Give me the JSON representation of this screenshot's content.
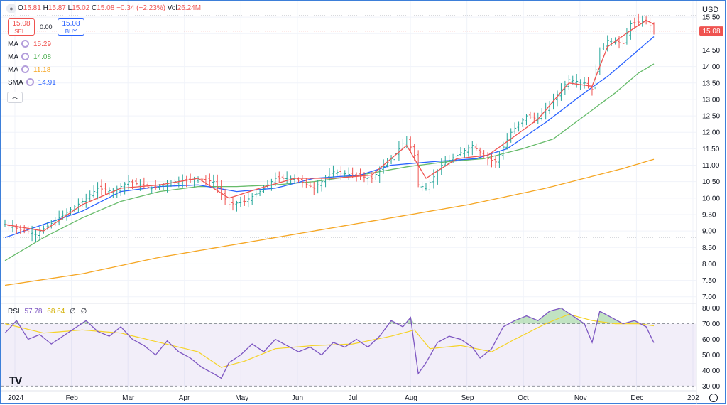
{
  "header": {
    "o_label": "O",
    "o": "15.81",
    "h_label": "H",
    "h": "15.87",
    "l_label": "L",
    "l": "15.02",
    "c_label": "C",
    "c": "15.08",
    "change": "−0.34 (−2.23%)",
    "vol_label": "Vol",
    "vol": "26.24M"
  },
  "trade": {
    "sell_price": "15.08",
    "sell_label": "SELL",
    "spread": "0.00",
    "buy_price": "15.08",
    "buy_label": "BUY"
  },
  "indicators": [
    {
      "label": "MA",
      "value": "15.29",
      "color": "#ef5350"
    },
    {
      "label": "MA",
      "value": "14.08",
      "color": "#4caf50"
    },
    {
      "label": "MA",
      "value": "11.18",
      "color": "#f5a623"
    },
    {
      "label": "SMA",
      "value": "14.91",
      "color": "#2962ff"
    }
  ],
  "collapse_icon": "chevron-up-icon",
  "currency": "USD",
  "logo_text": "TV",
  "rsi_legend": {
    "label": "RSI",
    "value": "57.78",
    "ma_value": "68.64",
    "extra1": "∅",
    "extra2": "∅"
  },
  "chart_data": {
    "type": "ohlc",
    "price_axis": {
      "ticks": [
        "7.00",
        "7.50",
        "8.00",
        "8.50",
        "9.00",
        "9.50",
        "10.00",
        "10.50",
        "11.00",
        "11.50",
        "12.00",
        "12.50",
        "13.00",
        "13.50",
        "14.00",
        "14.50",
        "15.00",
        "15.50"
      ],
      "ylim": [
        6.8,
        16.0
      ],
      "last_price_label": "15.08"
    },
    "rsi_axis": {
      "ticks": [
        "30.00",
        "40.00",
        "50.00",
        "60.00",
        "70.00",
        "80.00"
      ],
      "ylim": [
        27,
        83
      ],
      "band": [
        30,
        70
      ]
    },
    "months": [
      "2024",
      "Feb",
      "Mar",
      "Apr",
      "May",
      "Jun",
      "Jul",
      "Aug",
      "Sep",
      "Oct",
      "Nov",
      "Dec",
      "202"
    ],
    "price_anchors": [
      [
        0,
        9.2
      ],
      [
        8,
        8.9
      ],
      [
        14,
        9.4
      ],
      [
        20,
        9.9
      ],
      [
        24,
        10.3
      ],
      [
        28,
        10.2
      ],
      [
        32,
        10.5
      ],
      [
        38,
        10.3
      ],
      [
        44,
        10.5
      ],
      [
        50,
        10.6
      ],
      [
        54,
        10.5
      ],
      [
        58,
        9.8
      ],
      [
        62,
        9.9
      ],
      [
        66,
        10.2
      ],
      [
        70,
        10.6
      ],
      [
        75,
        10.6
      ],
      [
        80,
        10.3
      ],
      [
        85,
        10.8
      ],
      [
        90,
        10.7
      ],
      [
        95,
        10.6
      ],
      [
        100,
        11.2
      ],
      [
        104,
        11.8
      ],
      [
        106,
        11.3
      ],
      [
        107,
        10.4
      ],
      [
        109,
        10.3
      ],
      [
        113,
        11.0
      ],
      [
        117,
        11.3
      ],
      [
        121,
        11.6
      ],
      [
        125,
        11.2
      ],
      [
        127,
        11.1
      ],
      [
        131,
        12.0
      ],
      [
        135,
        12.5
      ],
      [
        138,
        12.4
      ],
      [
        142,
        13.0
      ],
      [
        146,
        13.6
      ],
      [
        150,
        13.5
      ],
      [
        152,
        13.3
      ],
      [
        154,
        14.5
      ],
      [
        156,
        14.8
      ],
      [
        160,
        14.7
      ],
      [
        162,
        15.3
      ],
      [
        166,
        15.4
      ],
      [
        168,
        15.08
      ]
    ],
    "ma_fast": [
      [
        0,
        9.2
      ],
      [
        10,
        9.0
      ],
      [
        20,
        9.8
      ],
      [
        30,
        10.3
      ],
      [
        40,
        10.4
      ],
      [
        50,
        10.6
      ],
      [
        58,
        10.0
      ],
      [
        66,
        10.3
      ],
      [
        75,
        10.6
      ],
      [
        85,
        10.6
      ],
      [
        95,
        10.7
      ],
      [
        104,
        11.6
      ],
      [
        109,
        10.6
      ],
      [
        117,
        11.2
      ],
      [
        125,
        11.3
      ],
      [
        131,
        11.8
      ],
      [
        138,
        12.4
      ],
      [
        146,
        13.5
      ],
      [
        152,
        13.4
      ],
      [
        156,
        14.6
      ],
      [
        162,
        15.1
      ],
      [
        166,
        15.4
      ],
      [
        168,
        15.29
      ]
    ],
    "sma_blue": [
      [
        0,
        8.8
      ],
      [
        10,
        9.2
      ],
      [
        20,
        9.6
      ],
      [
        30,
        10.2
      ],
      [
        40,
        10.35
      ],
      [
        50,
        10.4
      ],
      [
        60,
        10.2
      ],
      [
        70,
        10.3
      ],
      [
        80,
        10.6
      ],
      [
        92,
        10.7
      ],
      [
        100,
        11.0
      ],
      [
        110,
        11.1
      ],
      [
        122,
        11.2
      ],
      [
        130,
        11.5
      ],
      [
        140,
        12.3
      ],
      [
        150,
        13.2
      ],
      [
        156,
        13.7
      ],
      [
        162,
        14.3
      ],
      [
        168,
        14.91
      ]
    ],
    "ma_green": [
      [
        0,
        8.1
      ],
      [
        10,
        8.8
      ],
      [
        20,
        9.4
      ],
      [
        30,
        9.9
      ],
      [
        40,
        10.2
      ],
      [
        50,
        10.35
      ],
      [
        60,
        10.35
      ],
      [
        70,
        10.4
      ],
      [
        80,
        10.5
      ],
      [
        92,
        10.7
      ],
      [
        104,
        10.95
      ],
      [
        114,
        11.1
      ],
      [
        124,
        11.2
      ],
      [
        134,
        11.5
      ],
      [
        142,
        11.8
      ],
      [
        150,
        12.5
      ],
      [
        158,
        13.2
      ],
      [
        164,
        13.8
      ],
      [
        168,
        14.08
      ]
    ],
    "ma_orange": [
      [
        0,
        7.35
      ],
      [
        20,
        7.7
      ],
      [
        40,
        8.2
      ],
      [
        60,
        8.6
      ],
      [
        80,
        9.0
      ],
      [
        100,
        9.4
      ],
      [
        120,
        9.8
      ],
      [
        140,
        10.3
      ],
      [
        160,
        10.9
      ],
      [
        168,
        11.18
      ]
    ],
    "rsi_series": [
      [
        0,
        64
      ],
      [
        3,
        72
      ],
      [
        6,
        60
      ],
      [
        9,
        63
      ],
      [
        12,
        57
      ],
      [
        15,
        62
      ],
      [
        18,
        67
      ],
      [
        21,
        72
      ],
      [
        24,
        65
      ],
      [
        27,
        62
      ],
      [
        30,
        68
      ],
      [
        33,
        60
      ],
      [
        36,
        56
      ],
      [
        39,
        50
      ],
      [
        42,
        59
      ],
      [
        45,
        52
      ],
      [
        48,
        48
      ],
      [
        51,
        42
      ],
      [
        54,
        38
      ],
      [
        56,
        35
      ],
      [
        58,
        45
      ],
      [
        61,
        50
      ],
      [
        64,
        57
      ],
      [
        67,
        52
      ],
      [
        70,
        60
      ],
      [
        73,
        56
      ],
      [
        76,
        52
      ],
      [
        79,
        55
      ],
      [
        82,
        50
      ],
      [
        85,
        58
      ],
      [
        88,
        55
      ],
      [
        91,
        60
      ],
      [
        94,
        55
      ],
      [
        97,
        62
      ],
      [
        100,
        72
      ],
      [
        103,
        68
      ],
      [
        105,
        74
      ],
      [
        107,
        38
      ],
      [
        109,
        45
      ],
      [
        112,
        58
      ],
      [
        115,
        62
      ],
      [
        118,
        60
      ],
      [
        121,
        55
      ],
      [
        123,
        48
      ],
      [
        126,
        54
      ],
      [
        129,
        68
      ],
      [
        132,
        72
      ],
      [
        135,
        75
      ],
      [
        138,
        72
      ],
      [
        141,
        78
      ],
      [
        144,
        80
      ],
      [
        147,
        75
      ],
      [
        150,
        70
      ],
      [
        152,
        58
      ],
      [
        154,
        78
      ],
      [
        157,
        74
      ],
      [
        160,
        70
      ],
      [
        163,
        72
      ],
      [
        166,
        68
      ],
      [
        168,
        57.78
      ]
    ],
    "rsi_ma": [
      [
        0,
        70
      ],
      [
        10,
        64
      ],
      [
        20,
        66
      ],
      [
        30,
        64
      ],
      [
        40,
        58
      ],
      [
        50,
        52
      ],
      [
        56,
        42
      ],
      [
        62,
        46
      ],
      [
        70,
        54
      ],
      [
        80,
        56
      ],
      [
        90,
        57
      ],
      [
        100,
        62
      ],
      [
        106,
        66
      ],
      [
        110,
        54
      ],
      [
        118,
        56
      ],
      [
        126,
        52
      ],
      [
        132,
        60
      ],
      [
        140,
        70
      ],
      [
        146,
        76
      ],
      [
        152,
        72
      ],
      [
        158,
        70
      ],
      [
        164,
        70
      ],
      [
        168,
        68.64
      ]
    ]
  }
}
